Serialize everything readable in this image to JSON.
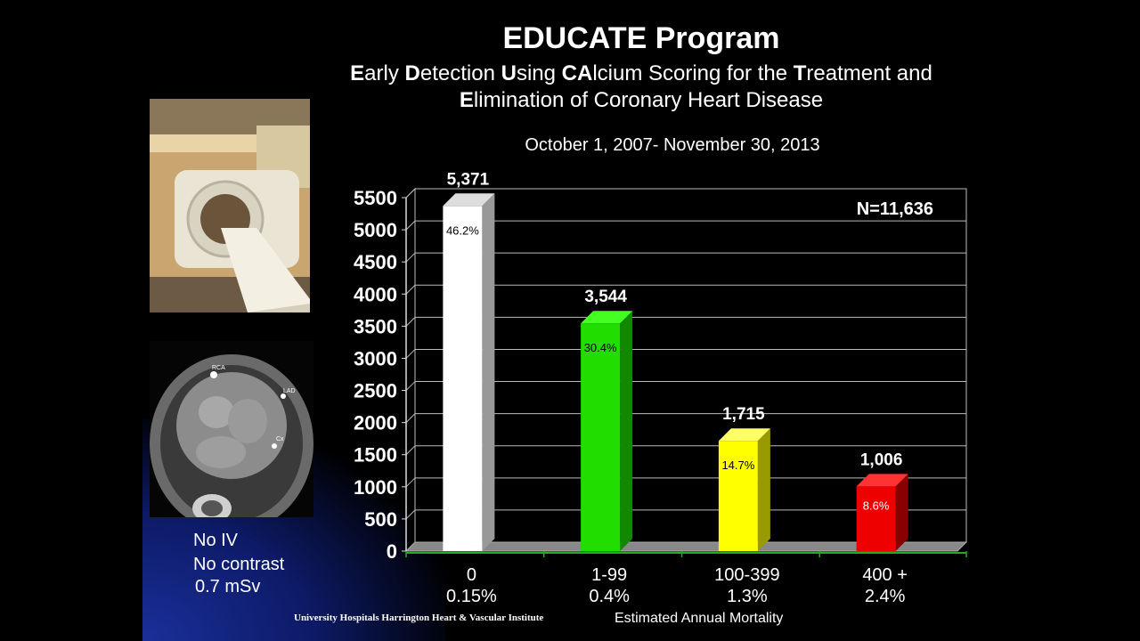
{
  "title": "EDUCATE Program",
  "subtitle": {
    "line1": [
      {
        "text": "E",
        "bold": true
      },
      {
        "text": "arly ",
        "bold": false
      },
      {
        "text": "D",
        "bold": true
      },
      {
        "text": "etection ",
        "bold": false
      },
      {
        "text": "U",
        "bold": true
      },
      {
        "text": "sing ",
        "bold": false
      },
      {
        "text": "CA",
        "bold": true
      },
      {
        "text": "lcium Scoring for the ",
        "bold": false
      },
      {
        "text": "T",
        "bold": true
      },
      {
        "text": "reatment and",
        "bold": false
      }
    ],
    "line2": [
      {
        "text": "E",
        "bold": true
      },
      {
        "text": "limination of Coronary Heart Disease",
        "bold": false
      }
    ]
  },
  "date_range": "October 1, 2007- November 30, 2013",
  "captions": [
    "No IV",
    "No contrast",
    "0.7 mSv"
  ],
  "institution": "University Hospitals Harrington Heart & Vascular Institute",
  "ct_labels": [
    "RCA",
    "LAD",
    "Cx"
  ],
  "chart_data": {
    "type": "bar",
    "categories": [
      "0",
      "1-99",
      "100-399",
      "400 +"
    ],
    "mortality": [
      "0.15%",
      "0.4%",
      "1.3%",
      "2.4%"
    ],
    "values": [
      5371,
      3544,
      1715,
      1006
    ],
    "value_labels": [
      "5,371",
      "3,544",
      "1,715",
      "1,006"
    ],
    "percent_labels": [
      "46.2%",
      "30.4%",
      "14.7%",
      "8.6%"
    ],
    "colors": [
      "#ffffff",
      "#22dd00",
      "#ffff00",
      "#ee0000"
    ],
    "side_colors": [
      "#999999",
      "#118800",
      "#999900",
      "#880000"
    ],
    "top_colors": [
      "#dddddd",
      "#44ff22",
      "#ffff66",
      "#ff3333"
    ],
    "pct_text_colors": [
      "#000000",
      "#000000",
      "#000000",
      "#ffffff"
    ],
    "n_label": "N=11,636",
    "xlabel": "Estimated Annual Mortality",
    "ylim": [
      0,
      5500
    ],
    "yticks": [
      0,
      500,
      1000,
      1500,
      2000,
      2500,
      3000,
      3500,
      4000,
      4500,
      5000,
      5500
    ],
    "grid": true
  }
}
